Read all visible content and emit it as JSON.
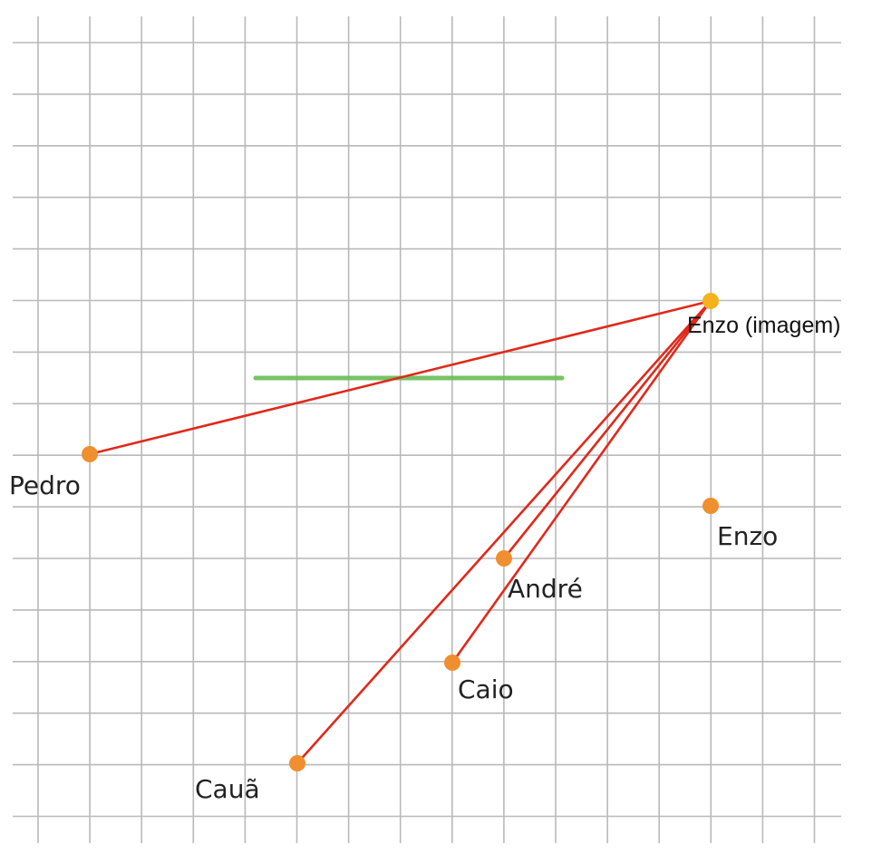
{
  "diagram": {
    "grid_color": "#b9b9b9",
    "mirror_color": "#69bd55",
    "ray_color": "#e0291a",
    "person_color": "#ef8f2f",
    "image_color": "#f5b21d"
  },
  "image": {
    "label": "Enzo (imagem)"
  },
  "people": [
    {
      "id": "pedro",
      "label": "Pedro"
    },
    {
      "id": "enzo",
      "label": "Enzo"
    },
    {
      "id": "andre",
      "label": "André"
    },
    {
      "id": "caio",
      "label": "Caio"
    },
    {
      "id": "caua",
      "label": "Cauã"
    }
  ]
}
